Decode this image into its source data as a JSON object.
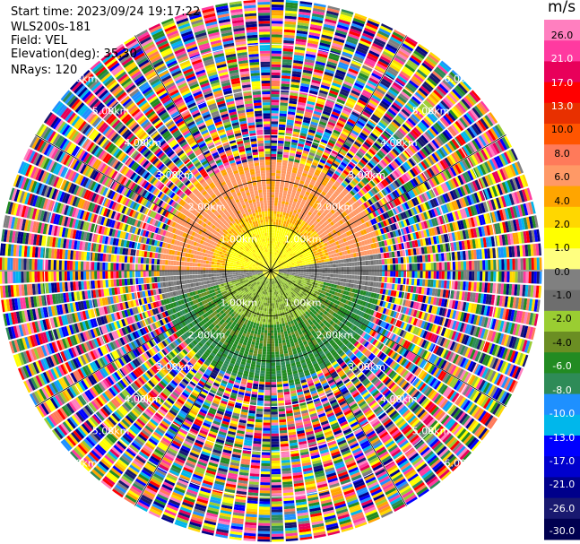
{
  "header": {
    "start_time": "Start time: 2023/09/24 19:17:22",
    "instrument": "WLS200s-181",
    "field": "Field: VEL",
    "elevation": "Elevation(deg): 35.30",
    "nrays": "NRays: 120"
  },
  "colorbar": {
    "unit": "m/s",
    "ticks": [
      "26.0",
      "21.0",
      "17.0",
      "13.0",
      "10.0",
      "8.0",
      "6.0",
      "4.0",
      "2.0",
      "1.0",
      "0.0",
      "-1.0",
      "-2.0",
      "-4.0",
      "-6.0",
      "-8.0",
      "-10.0",
      "-13.0",
      "-17.0",
      "-21.0",
      "-26.0",
      "-30.0"
    ],
    "colors": [
      "#ff7fbf",
      "#ff3aa0",
      "#e8005a",
      "#ff0000",
      "#e83000",
      "#ff5500",
      "#ff7a5a",
      "#ff9966",
      "#ffa500",
      "#ffd700",
      "#ffff00",
      "#ffff80",
      "#808080",
      "#6e6e6e",
      "#9acd32",
      "#6b8e23",
      "#228b22",
      "#2e8b57",
      "#1e90ff",
      "#00b7eb",
      "#0000ff",
      "#0000cd",
      "#00008b",
      "#191970",
      "#000050"
    ]
  },
  "chart_data": {
    "type": "heatmap",
    "projection": "polar (PPI)",
    "field": "VEL",
    "units": "m/s",
    "n_rays": 120,
    "range_rings_km": [
      1.0,
      2.0,
      3.0,
      4.0,
      5.0,
      6.0
    ],
    "range_ring_labels": [
      "1.00km",
      "2.00km",
      "3.00km",
      "4.00km",
      "5.00km",
      "6.00km"
    ]
  }
}
